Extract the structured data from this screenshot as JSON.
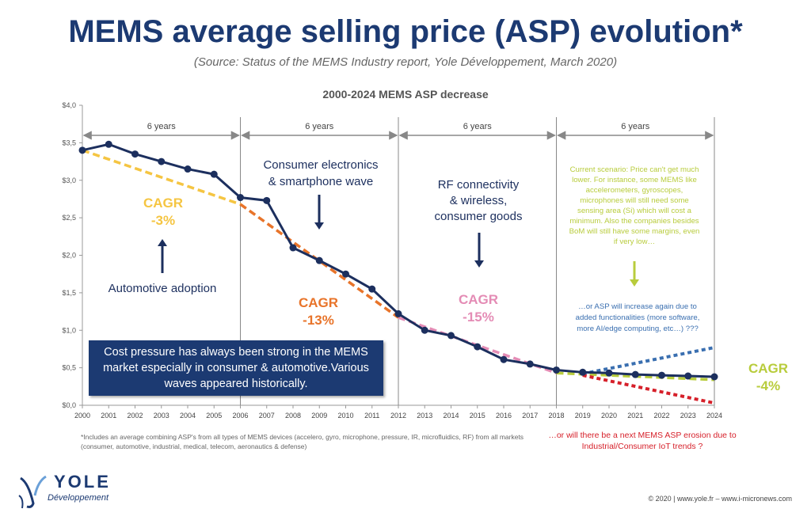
{
  "header": {
    "title": "MEMS average selling price (ASP) evolution*",
    "subtitle": "(Source: Status of the MEMS Industry report, Yole Développement, March 2020)"
  },
  "chart_data": {
    "type": "line",
    "title": "2000-2024 MEMS ASP decrease",
    "xlabel": "",
    "ylabel": "",
    "x": [
      2000,
      2001,
      2002,
      2003,
      2004,
      2005,
      2006,
      2007,
      2008,
      2009,
      2010,
      2011,
      2012,
      2013,
      2014,
      2015,
      2016,
      2017,
      2018,
      2019,
      2020,
      2021,
      2022,
      2023,
      2024
    ],
    "ylim": [
      0,
      4
    ],
    "y_ticks": [
      "$0,0",
      "$0,5",
      "$1,0",
      "$1,5",
      "$2,0",
      "$2,5",
      "$3,0",
      "$3,5",
      "$4,0"
    ],
    "grid": false,
    "series": [
      {
        "color": "#1c2f5e",
        "values": [
          3.4,
          3.48,
          3.35,
          3.25,
          3.15,
          3.08,
          2.77,
          2.73,
          2.1,
          1.93,
          1.75,
          1.55,
          1.22,
          1.0,
          0.93,
          0.78,
          0.61,
          0.55,
          0.47,
          0.44,
          0.43,
          0.41,
          0.4,
          0.39,
          0.38
        ]
      }
    ],
    "trend_lines": [
      {
        "label": "CAGR",
        "value": "-3%",
        "color": "#f5c542",
        "x": [
          2000,
          2006
        ],
        "y": [
          3.4,
          2.68
        ]
      },
      {
        "label": "CAGR",
        "value": "-13%",
        "color": "#e8742a",
        "x": [
          2006,
          2012
        ],
        "y": [
          2.68,
          1.17
        ]
      },
      {
        "label": "CAGR",
        "value": "-15%",
        "color": "#e48cb5",
        "x": [
          2012,
          2018
        ],
        "y": [
          1.17,
          0.43
        ]
      },
      {
        "label": "CAGR",
        "value": "-4%",
        "color": "#b8cc3c",
        "x": [
          2018,
          2024
        ],
        "y": [
          0.43,
          0.34
        ]
      },
      {
        "color": "#3a6fb0",
        "x": [
          2019,
          2024
        ],
        "y": [
          0.42,
          0.77
        ]
      },
      {
        "color": "#d6202a",
        "x": [
          2019,
          2024
        ],
        "y": [
          0.4,
          0.03
        ]
      }
    ],
    "periods": [
      {
        "label": "6 years",
        "from": 2000,
        "to": 2006
      },
      {
        "label": "6 years",
        "from": 2006,
        "to": 2012
      },
      {
        "label": "6 years",
        "from": 2012,
        "to": 2018
      },
      {
        "label": "6 years",
        "from": 2018,
        "to": 2024
      }
    ],
    "annotations": {
      "automotive": "Automotive adoption",
      "consumer_1": "Consumer electronics",
      "consumer_2": "& smartphone wave",
      "rf_1": "RF connectivity",
      "rf_2": "& wireless,",
      "rf_3": "consumer goods",
      "scenario": [
        "Current scenario: Price can't get much",
        "lower. For instance, some MEMS like",
        "accelerometers, gyroscopes,",
        "microphones will still need some",
        "sensing area (Si) which will cost a",
        "minimum. Also the companies besides",
        "BoM will still have some margins, even",
        "if very low…"
      ],
      "increase": [
        "…or ASP will increase again due to",
        "added functionalities (more software,",
        "more AI/edge computing, etc…) ???"
      ],
      "box": "Cost pressure has always been strong in the MEMS market especially in consumer & automotive.Various waves appeared historically.",
      "iot": "…or will there be a next MEMS ASP erosion due to Industrial/Consumer IoT trends ?"
    }
  },
  "footnote": "*Includes an average combining ASP's from all types of MEMS devices (accelero, gyro, microphone, pressure, IR, microfluidics, RF) from all markets (consumer, automotive, industrial, medical, telecom, aeronautics & defense)",
  "footer": {
    "copyright": "© 2020 | www.yole.fr – www.i-micronews.com",
    "logo_main": "YOLE",
    "logo_sub": "Développement"
  }
}
